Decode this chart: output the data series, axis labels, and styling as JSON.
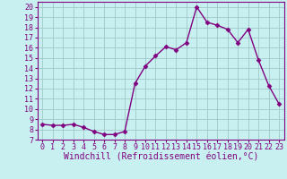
{
  "x": [
    0,
    1,
    2,
    3,
    4,
    5,
    6,
    7,
    8,
    9,
    10,
    11,
    12,
    13,
    14,
    15,
    16,
    17,
    18,
    19,
    20,
    21,
    22,
    23
  ],
  "y": [
    8.5,
    8.4,
    8.4,
    8.5,
    8.2,
    7.8,
    7.5,
    7.5,
    7.8,
    12.5,
    14.2,
    15.2,
    16.1,
    15.8,
    16.5,
    20.0,
    18.5,
    18.2,
    17.8,
    16.5,
    17.8,
    14.8,
    12.3,
    10.5
  ],
  "color": "#800080",
  "background_color": "#c8f0f0",
  "grid_color": "#a0c8c8",
  "xlabel": "Windchill (Refroidissement éolien,°C)",
  "ylim": [
    7,
    20.5
  ],
  "xlim": [
    -0.5,
    23.5
  ],
  "yticks": [
    7,
    8,
    9,
    10,
    11,
    12,
    13,
    14,
    15,
    16,
    17,
    18,
    19,
    20
  ],
  "xticks": [
    0,
    1,
    2,
    3,
    4,
    5,
    6,
    7,
    8,
    9,
    10,
    11,
    12,
    13,
    14,
    15,
    16,
    17,
    18,
    19,
    20,
    21,
    22,
    23
  ],
  "marker": "D",
  "markersize": 2.5,
  "linewidth": 1.0,
  "xlabel_fontsize": 7,
  "tick_fontsize": 6
}
